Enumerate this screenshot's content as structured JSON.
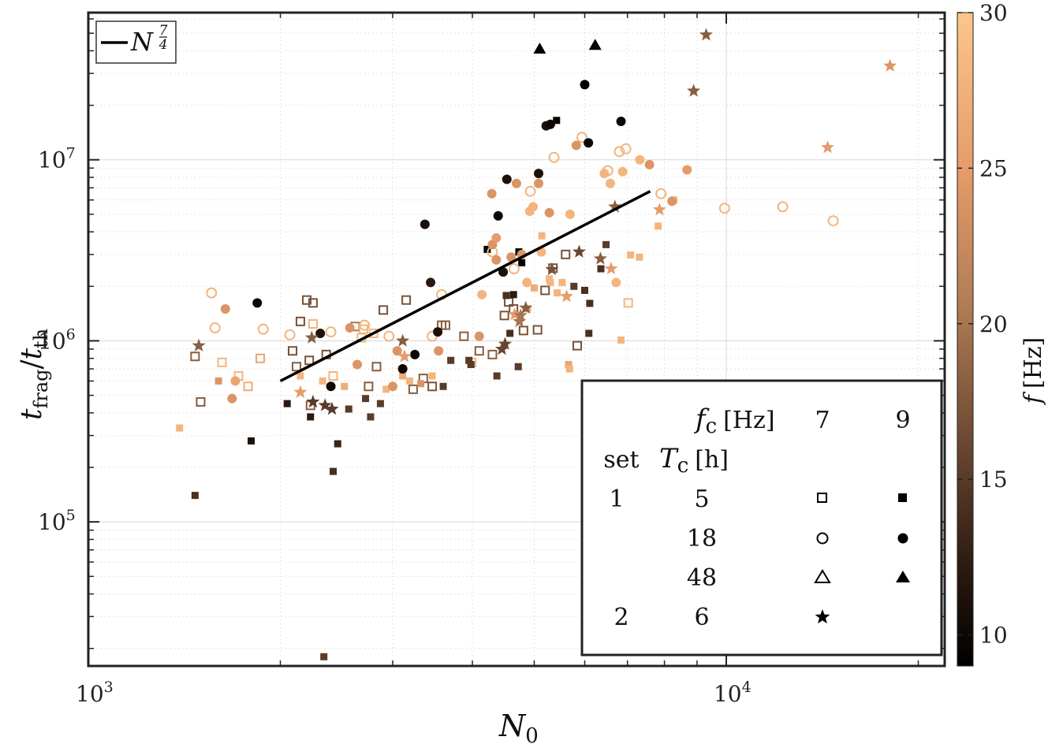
{
  "chart_data": {
    "type": "scatter",
    "title": "",
    "xlabel": "N",
    "xlabel_sub": "0",
    "ylabel_num": "t",
    "ylabel_num_sub": "frag",
    "ylabel_den": "t",
    "ylabel_den_sub": "th",
    "xscale": "log",
    "yscale": "log",
    "xlim": [
      1000,
      22000
    ],
    "ylim": [
      16000,
      65000000
    ],
    "x_ticks": [
      {
        "value": 1000,
        "base": "10",
        "exp": "3"
      },
      {
        "value": 10000,
        "base": "10",
        "exp": "4"
      }
    ],
    "y_ticks": [
      {
        "value": 100000,
        "base": "10",
        "exp": "5"
      },
      {
        "value": 1000000,
        "base": "10",
        "exp": "6"
      },
      {
        "value": 10000000,
        "base": "10",
        "exp": "7"
      }
    ],
    "colorbar": {
      "label": "f",
      "unit": "[Hz]",
      "min": 9,
      "max": 30,
      "ticks": [
        "10",
        "15",
        "20",
        "25",
        "30"
      ]
    },
    "fit_line": {
      "label": "N",
      "exponent_num": "7",
      "exponent_den": "4",
      "x": [
        2000,
        7600
      ],
      "y": [
        600000,
        6700000
      ]
    },
    "legend_table": {
      "fc_label": "f",
      "fc_sub": "c",
      "fc_unit": "[Hz]",
      "fc_values": [
        "7",
        "9"
      ],
      "set_header": "set",
      "tc_label": "T",
      "tc_sub": "c",
      "tc_unit": "[h]",
      "rows": [
        {
          "set": "1",
          "tc": "5",
          "marker": "square"
        },
        {
          "set": "",
          "tc": "18",
          "marker": "circle"
        },
        {
          "set": "",
          "tc": "48",
          "marker": "triangle"
        },
        {
          "set": "2",
          "tc": "6",
          "marker": "star"
        }
      ]
    },
    "series": [
      {
        "name": "set 1, Tc 5 h, fc 7 Hz",
        "marker": "square",
        "filled": false,
        "points": [
          [
            1470,
            820000,
            18
          ],
          [
            1500,
            460000,
            18
          ],
          [
            1620,
            760000,
            28
          ],
          [
            1720,
            640000,
            28
          ],
          [
            1780,
            560000,
            27
          ],
          [
            1860,
            800000,
            26
          ],
          [
            2090,
            880000,
            17
          ],
          [
            2120,
            720000,
            18
          ],
          [
            2150,
            1280000,
            17
          ],
          [
            2200,
            1680000,
            17
          ],
          [
            2220,
            780000,
            17
          ],
          [
            2250,
            1620000,
            17
          ],
          [
            2230,
            440000,
            18
          ],
          [
            2250,
            1240000,
            28
          ],
          [
            2360,
            840000,
            17
          ],
          [
            2420,
            640000,
            28
          ],
          [
            2620,
            1200000,
            20
          ],
          [
            2680,
            1040000,
            28
          ],
          [
            2700,
            1160000,
            28
          ],
          [
            2750,
            560000,
            18
          ],
          [
            2800,
            1100000,
            28
          ],
          [
            2830,
            720000,
            18
          ],
          [
            2900,
            1480000,
            17
          ],
          [
            3150,
            1680000,
            17
          ],
          [
            3230,
            540000,
            18
          ],
          [
            3350,
            620000,
            18
          ],
          [
            3460,
            560000,
            17
          ],
          [
            3580,
            1220000,
            18
          ],
          [
            3630,
            1220000,
            18
          ],
          [
            3880,
            1060000,
            18
          ],
          [
            3990,
            760000,
            28
          ],
          [
            4100,
            880000,
            18
          ],
          [
            4300,
            840000,
            18
          ],
          [
            4490,
            1380000,
            17
          ],
          [
            4560,
            1640000,
            17
          ],
          [
            4640,
            1500000,
            17
          ],
          [
            4810,
            1140000,
            17
          ],
          [
            5060,
            1150000,
            17
          ],
          [
            5200,
            1900000,
            17
          ],
          [
            5350,
            2520000,
            17
          ],
          [
            5600,
            3000000,
            17
          ],
          [
            5840,
            940000,
            17
          ],
          [
            7020,
            1620000,
            28
          ]
        ]
      },
      {
        "name": "set 1, Tc 5 h, fc 9 Hz",
        "marker": "square",
        "filled": true,
        "points": [
          [
            1390,
            330000,
            28
          ],
          [
            1470,
            140000,
            14
          ],
          [
            1600,
            600000,
            24
          ],
          [
            1800,
            280000,
            11
          ],
          [
            2050,
            450000,
            12
          ],
          [
            2150,
            640000,
            28
          ],
          [
            2230,
            380000,
            12
          ],
          [
            2330,
            600000,
            28
          ],
          [
            2340,
            18000,
            15
          ],
          [
            2420,
            190000,
            14
          ],
          [
            2460,
            270000,
            13
          ],
          [
            2520,
            560000,
            27
          ],
          [
            2560,
            420000,
            15
          ],
          [
            2720,
            480000,
            15
          ],
          [
            2770,
            380000,
            15
          ],
          [
            2870,
            450000,
            15
          ],
          [
            2930,
            540000,
            28
          ],
          [
            3110,
            640000,
            27
          ],
          [
            3190,
            600000,
            28
          ],
          [
            3320,
            580000,
            24
          ],
          [
            3460,
            640000,
            28
          ],
          [
            3600,
            560000,
            15
          ],
          [
            3700,
            780000,
            15
          ],
          [
            3950,
            780000,
            15
          ],
          [
            3980,
            740000,
            15
          ],
          [
            4220,
            3200000,
            9
          ],
          [
            4370,
            640000,
            15
          ],
          [
            4520,
            1780000,
            14
          ],
          [
            4580,
            1100000,
            14
          ],
          [
            4640,
            1800000,
            12
          ],
          [
            4720,
            720000,
            15
          ],
          [
            4730,
            3100000,
            9
          ],
          [
            4780,
            2700000,
            9
          ],
          [
            4880,
            1500000,
            27
          ],
          [
            5000,
            1960000,
            27
          ],
          [
            5140,
            3800000,
            28
          ],
          [
            5280,
            2200000,
            28
          ],
          [
            5300,
            2100000,
            28
          ],
          [
            5430,
            1840000,
            28
          ],
          [
            5530,
            2100000,
            28
          ],
          [
            5660,
            740000,
            26
          ],
          [
            5680,
            700000,
            28
          ],
          [
            5770,
            2000000,
            15
          ],
          [
            6000,
            1900000,
            14
          ],
          [
            6090,
            1100000,
            14
          ],
          [
            6110,
            1610000,
            14
          ],
          [
            6360,
            2500000,
            14
          ],
          [
            6480,
            3400000,
            15
          ],
          [
            6840,
            1010000,
            28
          ],
          [
            7080,
            2980000,
            28
          ],
          [
            7310,
            2900000,
            28
          ],
          [
            7820,
            4300000,
            28
          ],
          [
            8280,
            6000000,
            28
          ],
          [
            5420,
            16500000,
            9
          ]
        ]
      },
      {
        "name": "set 1, Tc 18 h, fc 7 Hz",
        "marker": "circle",
        "filled": false,
        "points": [
          [
            1560,
            1840000,
            28
          ],
          [
            1580,
            1180000,
            28
          ],
          [
            1880,
            1160000,
            28
          ],
          [
            2070,
            1080000,
            28
          ],
          [
            2400,
            1120000,
            28
          ],
          [
            2710,
            1220000,
            28
          ],
          [
            2960,
            1060000,
            28
          ],
          [
            3460,
            1060000,
            28
          ],
          [
            3580,
            1800000,
            28
          ],
          [
            4300,
            3100000,
            28
          ],
          [
            4650,
            2500000,
            28
          ],
          [
            4930,
            6700000,
            28
          ],
          [
            5370,
            10300000,
            28
          ],
          [
            5940,
            13300000,
            28
          ],
          [
            6520,
            8700000,
            28
          ],
          [
            6800,
            11100000,
            28
          ],
          [
            6960,
            11500000,
            28
          ],
          [
            7900,
            6500000,
            28
          ],
          [
            9940,
            5400000,
            28
          ],
          [
            12260,
            5500000,
            28
          ],
          [
            14710,
            4600000,
            28
          ]
        ]
      },
      {
        "name": "set 1, Tc 18 h, fc 9 Hz",
        "marker": "circle",
        "filled": true,
        "points": [
          [
            1640,
            1500000,
            24
          ],
          [
            1680,
            480000,
            24
          ],
          [
            1700,
            600000,
            26
          ],
          [
            1840,
            1620000,
            10
          ],
          [
            2310,
            1100000,
            11
          ],
          [
            2400,
            560000,
            10
          ],
          [
            2570,
            1180000,
            24
          ],
          [
            2640,
            740000,
            24
          ],
          [
            3000,
            560000,
            24
          ],
          [
            3050,
            880000,
            24
          ],
          [
            3110,
            700000,
            10
          ],
          [
            3250,
            840000,
            10
          ],
          [
            3370,
            4400000,
            11
          ],
          [
            3440,
            2100000,
            12
          ],
          [
            3530,
            1120000,
            11
          ],
          [
            3540,
            880000,
            24
          ],
          [
            4100,
            1060000,
            24
          ],
          [
            4140,
            1800000,
            28
          ],
          [
            4290,
            6500000,
            24
          ],
          [
            4300,
            3400000,
            24
          ],
          [
            4360,
            2800000,
            24
          ],
          [
            4360,
            3700000,
            25
          ],
          [
            4390,
            4900000,
            10
          ],
          [
            4470,
            2400000,
            11
          ],
          [
            4530,
            7800000,
            11
          ],
          [
            4600,
            2900000,
            24
          ],
          [
            4690,
            7400000,
            24
          ],
          [
            4780,
            3000000,
            24
          ],
          [
            4870,
            2100000,
            28
          ],
          [
            4920,
            5200000,
            28
          ],
          [
            4980,
            5500000,
            28
          ],
          [
            5080,
            7400000,
            24
          ],
          [
            5080,
            8400000,
            11
          ],
          [
            5130,
            3100000,
            28
          ],
          [
            5220,
            15400000,
            11
          ],
          [
            5280,
            5100000,
            24
          ],
          [
            5300,
            15700000,
            10
          ],
          [
            5690,
            5000000,
            28
          ],
          [
            5820,
            12000000,
            24
          ],
          [
            6000,
            26000000,
            9
          ],
          [
            6080,
            12400000,
            10
          ],
          [
            6440,
            8400000,
            28
          ],
          [
            6580,
            7400000,
            28
          ],
          [
            6720,
            2100000,
            28
          ],
          [
            6840,
            16300000,
            10
          ],
          [
            6880,
            8600000,
            28
          ],
          [
            7320,
            10000000,
            28
          ],
          [
            7580,
            9400000,
            24
          ],
          [
            8220,
            5900000,
            24
          ],
          [
            8680,
            8800000,
            25
          ]
        ]
      },
      {
        "name": "set 1, Tc 48 h, fc 9 Hz",
        "marker": "triangle",
        "filled": true,
        "points": [
          [
            5100,
            41000000,
            9
          ],
          [
            6230,
            43000000,
            9
          ]
        ]
      },
      {
        "name": "set 2, Tc 6 h, fc 7 Hz",
        "marker": "star",
        "filled": true,
        "points": [
          [
            1490,
            940000,
            18
          ],
          [
            2150,
            520000,
            25
          ],
          [
            2240,
            1040000,
            18
          ],
          [
            2250,
            460000,
            15
          ],
          [
            2350,
            440000,
            15
          ],
          [
            2410,
            420000,
            15
          ],
          [
            3110,
            1000000,
            18
          ],
          [
            3130,
            820000,
            25
          ],
          [
            4450,
            900000,
            16
          ],
          [
            4500,
            960000,
            16
          ],
          [
            4660,
            1400000,
            25
          ],
          [
            4740,
            1280000,
            20
          ],
          [
            4760,
            1380000,
            20
          ],
          [
            4850,
            1520000,
            18
          ],
          [
            5330,
            2480000,
            17
          ],
          [
            5620,
            1760000,
            25
          ],
          [
            5880,
            3100000,
            16
          ],
          [
            6350,
            2840000,
            18
          ],
          [
            6600,
            2500000,
            25
          ],
          [
            6690,
            5500000,
            18
          ],
          [
            7860,
            5300000,
            25
          ],
          [
            8890,
            24000000,
            18
          ],
          [
            9300,
            49000000,
            18
          ],
          [
            14420,
            11700000,
            25
          ],
          [
            18060,
            33000000,
            24
          ]
        ]
      }
    ]
  }
}
